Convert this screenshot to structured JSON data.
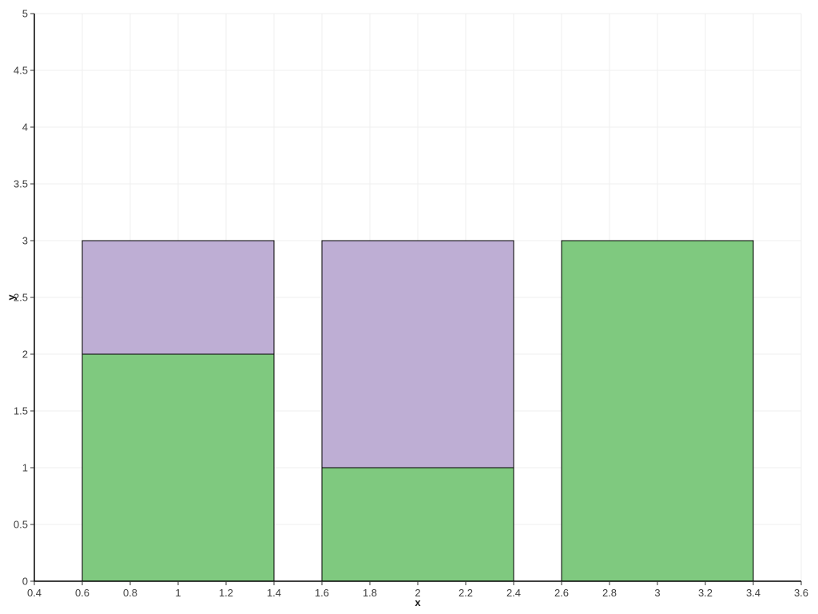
{
  "chart_data": {
    "type": "bar",
    "stacked": true,
    "title": "",
    "xlabel": "x",
    "ylabel": "y",
    "xlim": [
      0.4,
      3.6
    ],
    "ylim": [
      0,
      5
    ],
    "grid": true,
    "legend": "none",
    "categories": [
      1,
      2,
      3
    ],
    "bar_width": 0.8,
    "series": [
      {
        "name": "green",
        "color": "#7fc97f",
        "values": [
          2,
          1,
          3
        ]
      },
      {
        "name": "purple",
        "color": "#beaed4",
        "values": [
          1,
          2,
          0
        ]
      }
    ],
    "x_ticks": [
      0.4,
      0.6,
      0.8,
      1,
      1.2,
      1.4,
      1.6,
      1.8,
      2,
      2.2,
      2.4,
      2.6,
      2.8,
      3,
      3.2,
      3.4,
      3.6
    ],
    "x_tick_labels": [
      "0.4",
      "0.6",
      "0.8",
      "1",
      "1.2",
      "1.4",
      "1.6",
      "1.8",
      "2",
      "2.2",
      "2.4",
      "2.6",
      "2.8",
      "3",
      "3.2",
      "3.4",
      "3.6"
    ],
    "y_ticks": [
      0,
      0.5,
      1,
      1.5,
      2,
      2.5,
      3,
      3.5,
      4,
      4.5,
      5
    ],
    "y_tick_labels": [
      "0",
      "0.5",
      "1",
      "1.5",
      "2",
      "2.5",
      "3",
      "3.5",
      "4",
      "4.5",
      "5"
    ],
    "colors": {
      "bar_edge": "#000000",
      "axis": "#000000",
      "grid": "#efefef",
      "tick_mark": "#333333",
      "tick_label": "#3d3d3d",
      "background": "#ffffff"
    }
  }
}
